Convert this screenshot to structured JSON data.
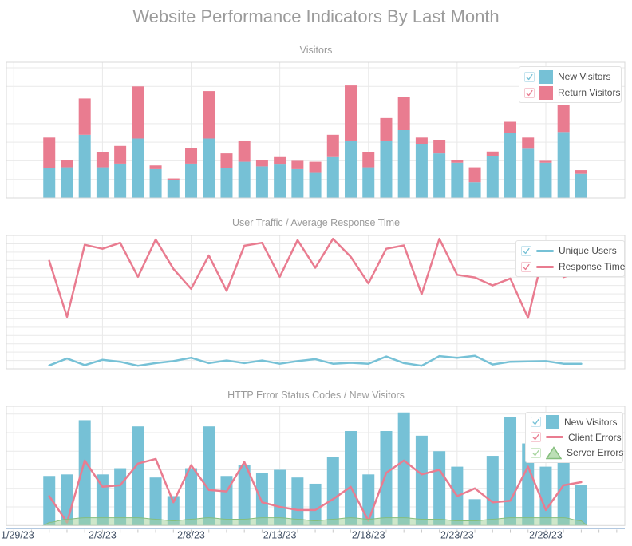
{
  "page": {
    "title": "Website Performance Indicators By Last Month"
  },
  "colors": {
    "blue": "#76C1D6",
    "pink": "#E97C90",
    "green_fill": "#A6D49E",
    "green_stroke": "#85BE7D",
    "grid": "#E9E9E9",
    "plot_border": "#D8D8D8",
    "axis_line": "#B2C8E0",
    "tick": "#C6C6C6",
    "axis_label": "#3F4E63",
    "title_gray": "#9B9B9B",
    "legend_text": "#4B4B4B",
    "legend_border": "#E2E2E2",
    "checkbox_border": {
      "blue": "#C6E4EF",
      "pink": "#F6C9D2",
      "green": "#CFE8C9"
    }
  },
  "x_axis": {
    "labels": [
      "1/29/23",
      "2/3/23",
      "2/8/23",
      "2/13/23",
      "2/18/23",
      "2/23/23",
      "2/28/23"
    ],
    "label_day_indices": [
      0,
      5,
      10,
      15,
      20,
      25,
      30
    ],
    "bar_start_day_index": 2,
    "total_day_slots": 35
  },
  "chart_data": [
    {
      "type": "bar",
      "subtype": "stacked-bar",
      "title": "Visitors",
      "categories": [
        "1/31/23",
        "2/1/23",
        "2/2/23",
        "2/3/23",
        "2/4/23",
        "2/5/23",
        "2/6/23",
        "2/7/23",
        "2/8/23",
        "2/9/23",
        "2/10/23",
        "2/11/23",
        "2/12/23",
        "2/13/23",
        "2/14/23",
        "2/15/23",
        "2/16/23",
        "2/17/23",
        "2/18/23",
        "2/19/23",
        "2/20/23",
        "2/21/23",
        "2/22/23",
        "2/23/23",
        "2/24/23",
        "2/25/23",
        "2/26/23",
        "2/27/23",
        "2/28/23",
        "3/1/23",
        "3/2/23"
      ],
      "ylim": [
        0,
        146
      ],
      "grid_step": 20,
      "grid": true,
      "legend_position": "top-right",
      "series": [
        {
          "name": "New Visitors",
          "color": "blue",
          "render": "bar",
          "values": [
            32,
            33,
            68,
            33,
            37,
            64,
            31,
            19,
            37,
            64,
            32,
            39,
            34,
            36,
            31,
            27,
            44,
            61,
            33,
            61,
            73,
            58,
            48,
            38,
            17,
            45,
            70,
            53,
            38,
            71,
            26
          ]
        },
        {
          "name": "Return Visitors",
          "color": "pink",
          "render": "bar",
          "values": [
            33,
            8,
            39,
            16,
            19,
            56,
            4,
            2,
            17,
            51,
            16,
            22,
            7,
            8,
            9,
            12,
            24,
            60,
            16,
            25,
            36,
            7,
            14,
            3,
            16,
            5,
            12,
            12,
            2,
            29,
            4
          ]
        }
      ],
      "legend": [
        {
          "label": "New Visitors",
          "marker": "square",
          "color": "blue",
          "checked": true
        },
        {
          "label": "Return Visitors",
          "marker": "square",
          "color": "pink",
          "checked": true
        }
      ]
    },
    {
      "type": "line",
      "title": "User Traffic / Average Response Time",
      "categories": [
        "1/31/23",
        "2/1/23",
        "2/2/23",
        "2/3/23",
        "2/4/23",
        "2/5/23",
        "2/6/23",
        "2/7/23",
        "2/8/23",
        "2/9/23",
        "2/10/23",
        "2/11/23",
        "2/12/23",
        "2/13/23",
        "2/14/23",
        "2/15/23",
        "2/16/23",
        "2/17/23",
        "2/18/23",
        "2/19/23",
        "2/20/23",
        "2/21/23",
        "2/22/23",
        "2/23/23",
        "2/24/23",
        "2/25/23",
        "2/26/23",
        "2/27/23",
        "2/28/23",
        "3/1/23",
        "3/2/23"
      ],
      "ylim": [
        0,
        400
      ],
      "grid_step": 25,
      "grid": true,
      "legend_position": "top-right",
      "series": [
        {
          "name": "Unique Users",
          "color": "blue",
          "render": "line",
          "values": [
            10,
            31,
            11,
            27,
            21,
            9,
            17,
            23,
            33,
            17,
            25,
            17,
            25,
            15,
            23,
            29,
            15,
            18,
            15,
            37,
            17,
            9,
            38,
            33,
            39,
            13,
            21,
            22,
            23,
            15,
            15
          ]
        },
        {
          "name": "Response Time",
          "color": "pink",
          "render": "line",
          "values": [
            324,
            156,
            372,
            360,
            378,
            276,
            388,
            300,
            240,
            340,
            234,
            369,
            378,
            276,
            386,
            303,
            390,
            336,
            256,
            360,
            370,
            224,
            390,
            282,
            274,
            250,
            271,
            153,
            376,
            275,
            292
          ]
        }
      ],
      "legend": [
        {
          "label": "Unique Users",
          "marker": "line",
          "color": "blue",
          "checked": true
        },
        {
          "label": "Response Time",
          "marker": "line",
          "color": "pink",
          "checked": true
        }
      ]
    },
    {
      "type": "bar",
      "subtype": "bar-line-area",
      "title": "HTTP Error Status Codes / New Visitors",
      "categories": [
        "1/31/23",
        "2/1/23",
        "2/2/23",
        "2/3/23",
        "2/4/23",
        "2/5/23",
        "2/6/23",
        "2/7/23",
        "2/8/23",
        "2/9/23",
        "2/10/23",
        "2/11/23",
        "2/12/23",
        "2/13/23",
        "2/14/23",
        "2/15/23",
        "2/16/23",
        "2/17/23",
        "2/18/23",
        "2/19/23",
        "2/20/23",
        "2/21/23",
        "2/22/23",
        "2/23/23",
        "2/24/23",
        "2/25/23",
        "2/26/23",
        "2/27/23",
        "2/28/23",
        "3/1/23",
        "3/2/23"
      ],
      "ylim": [
        0,
        77
      ],
      "grid_step": 12,
      "grid": true,
      "show_x_labels": true,
      "legend_position": "top-right",
      "series": [
        {
          "name": "New Visitors",
          "color": "blue",
          "render": "bar",
          "values": [
            32,
            33,
            68,
            33,
            37,
            64,
            31,
            19,
            37,
            64,
            32,
            39,
            34,
            36,
            31,
            27,
            44,
            61,
            33,
            61,
            73,
            58,
            48,
            38,
            17,
            45,
            70,
            53,
            38,
            71,
            26
          ]
        },
        {
          "name": "Client Errors",
          "color": "pink",
          "render": "line",
          "values": [
            19,
            2,
            42,
            25,
            26,
            40,
            43,
            15,
            39,
            23,
            22,
            41,
            15,
            12,
            10,
            10,
            17,
            25,
            3,
            34,
            42,
            33,
            36,
            19,
            24,
            15,
            16,
            38,
            10,
            26,
            28
          ]
        },
        {
          "name": "Server Errors",
          "color": "green",
          "render": "area",
          "values": [
            2,
            4,
            5,
            5,
            5,
            5,
            4,
            3,
            4,
            5,
            4,
            4,
            5,
            5,
            4,
            3,
            4,
            5,
            4,
            5,
            5,
            4,
            4,
            3,
            3,
            4,
            5,
            5,
            5,
            5,
            3
          ]
        }
      ],
      "legend": [
        {
          "label": "New Visitors",
          "marker": "square",
          "color": "blue",
          "checked": true
        },
        {
          "label": "Client Errors",
          "marker": "line",
          "color": "pink",
          "checked": true
        },
        {
          "label": "Server Errors",
          "marker": "triangle",
          "color": "green",
          "checked": true
        }
      ]
    }
  ]
}
